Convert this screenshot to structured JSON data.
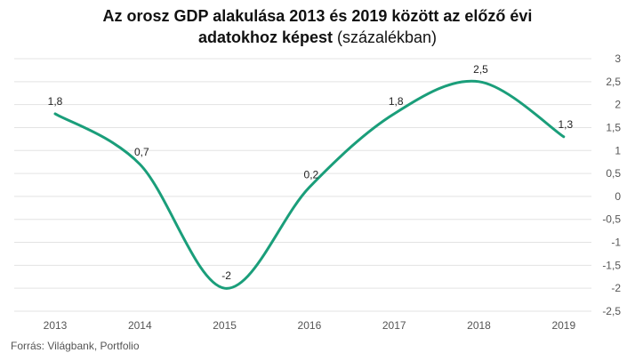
{
  "title": {
    "line1": "Az orosz GDP alakulása 2013 és 2019 között az előző évi",
    "line2_bold": "adatokhoz képest",
    "line2_normal": " (százalékban)"
  },
  "source": "Forrás:  Világbank,  Portfolio",
  "colors": {
    "line": "#1a9e7a",
    "grid": "#e3e3e3"
  },
  "chart_data": {
    "type": "line",
    "categories": [
      "2013",
      "2014",
      "2015",
      "2016",
      "2017",
      "2018",
      "2019"
    ],
    "series": [
      {
        "values": [
          1.8,
          0.7,
          -2,
          0.2,
          1.8,
          2.5,
          1.3
        ]
      }
    ],
    "data_labels": [
      "1,8",
      "0,7",
      "-2",
      "0,2",
      "1,8",
      "2,5",
      "1,3"
    ],
    "ylim": [
      -2.5,
      3
    ],
    "yticks": [
      3,
      2.5,
      2,
      1.5,
      1,
      0.5,
      0,
      -0.5,
      -1,
      -1.5,
      -2,
      -2.5
    ],
    "ytick_labels": [
      "3",
      "2,5",
      "2",
      "1,5",
      "1",
      "0,5",
      "0",
      "-0,5",
      "-1",
      "-1,5",
      "-2",
      "-2,5"
    ],
    "xlabel": "",
    "ylabel": "",
    "grid": true,
    "y_axis_position": "right",
    "legend": "none"
  }
}
